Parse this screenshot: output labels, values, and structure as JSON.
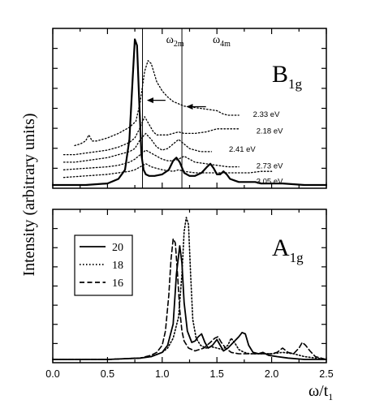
{
  "chart_data": [
    {
      "panel": "top",
      "type": "line",
      "label_main": "B",
      "label_sub": "1g",
      "xlim": [
        0.0,
        2.5
      ],
      "yticks_unlabeled": true,
      "vlines": [
        {
          "x": 0.82,
          "label_main": "",
          "label_sub": ""
        },
        {
          "x": 1.18,
          "label_main": "ω",
          "label_sub": "2m"
        }
      ],
      "vline_extra_label": {
        "x": 1.55,
        "label_main": "ω",
        "label_sub": "4m"
      },
      "arrows": [
        {
          "from_x": 1.03,
          "to_x": 0.86,
          "y_frac": 0.55
        },
        {
          "from_x": 1.4,
          "to_x": 1.22,
          "y_frac": 0.51
        }
      ],
      "series": [
        {
          "name": "Bold",
          "style": "solid",
          "width": 2.2,
          "x": [
            0.0,
            0.3,
            0.5,
            0.6,
            0.66,
            0.7,
            0.73,
            0.75,
            0.77,
            0.79,
            0.81,
            0.83,
            0.85,
            0.88,
            0.93,
            1.0,
            1.06,
            1.1,
            1.13,
            1.16,
            1.2,
            1.25,
            1.3,
            1.36,
            1.41,
            1.44,
            1.47,
            1.5,
            1.53,
            1.56,
            1.59,
            1.62,
            1.66,
            1.7,
            1.75,
            1.8,
            1.85,
            1.9,
            2.0,
            2.1,
            2.3,
            2.5
          ],
          "y": [
            0.0,
            0.0,
            0.01,
            0.04,
            0.1,
            0.3,
            0.7,
            0.96,
            0.92,
            0.55,
            0.2,
            0.1,
            0.07,
            0.06,
            0.06,
            0.07,
            0.1,
            0.16,
            0.18,
            0.15,
            0.08,
            0.06,
            0.06,
            0.08,
            0.12,
            0.14,
            0.11,
            0.07,
            0.07,
            0.09,
            0.07,
            0.04,
            0.03,
            0.02,
            0.02,
            0.02,
            0.02,
            0.01,
            0.01,
            0.01,
            0.0,
            0.0
          ]
        },
        {
          "name": "2.33 eV",
          "style": "dotted",
          "x": [
            0.2,
            0.25,
            0.3,
            0.33,
            0.36,
            0.4,
            0.5,
            0.6,
            0.7,
            0.76,
            0.8,
            0.84,
            0.87,
            0.9,
            0.95,
            1.0,
            1.05,
            1.1,
            1.2,
            1.3,
            1.4,
            1.5,
            1.55,
            1.6,
            1.65,
            1.7
          ],
          "y": [
            0.26,
            0.27,
            0.29,
            0.33,
            0.29,
            0.29,
            0.31,
            0.34,
            0.38,
            0.42,
            0.55,
            0.75,
            0.82,
            0.8,
            0.68,
            0.62,
            0.58,
            0.55,
            0.52,
            0.51,
            0.5,
            0.49,
            0.47,
            0.46,
            0.46,
            0.46
          ]
        },
        {
          "name": "2.18 eV",
          "style": "dotted",
          "x": [
            0.1,
            0.2,
            0.3,
            0.4,
            0.5,
            0.6,
            0.7,
            0.75,
            0.8,
            0.84,
            0.88,
            0.92,
            0.95,
            1.0,
            1.05,
            1.1,
            1.15,
            1.2,
            1.3,
            1.4,
            1.5,
            1.6,
            1.65,
            1.7
          ],
          "y": [
            0.2,
            0.2,
            0.21,
            0.22,
            0.23,
            0.25,
            0.28,
            0.31,
            0.38,
            0.45,
            0.4,
            0.35,
            0.33,
            0.33,
            0.33,
            0.34,
            0.35,
            0.34,
            0.34,
            0.35,
            0.37,
            0.37,
            0.37,
            0.37
          ]
        },
        {
          "name": "2.41 eV",
          "style": "dotted",
          "x": [
            0.1,
            0.2,
            0.3,
            0.4,
            0.5,
            0.6,
            0.7,
            0.75,
            0.8,
            0.85,
            0.9,
            0.95,
            1.0,
            1.05,
            1.1,
            1.15,
            1.2,
            1.25,
            1.3,
            1.35,
            1.4,
            1.45
          ],
          "y": [
            0.15,
            0.15,
            0.16,
            0.17,
            0.18,
            0.2,
            0.22,
            0.24,
            0.3,
            0.34,
            0.3,
            0.25,
            0.23,
            0.24,
            0.27,
            0.3,
            0.27,
            0.24,
            0.23,
            0.22,
            0.22,
            0.22
          ]
        },
        {
          "name": "2.73 eV",
          "style": "dotted",
          "x": [
            0.1,
            0.3,
            0.5,
            0.6,
            0.7,
            0.75,
            0.8,
            0.85,
            0.9,
            0.95,
            1.0,
            1.05,
            1.1,
            1.15,
            1.2,
            1.25,
            1.3,
            1.4,
            1.5,
            1.6,
            1.7
          ],
          "y": [
            0.1,
            0.11,
            0.12,
            0.13,
            0.15,
            0.17,
            0.2,
            0.23,
            0.21,
            0.19,
            0.17,
            0.16,
            0.16,
            0.17,
            0.19,
            0.17,
            0.15,
            0.14,
            0.13,
            0.12,
            0.12
          ]
        },
        {
          "name": "3.05 eV",
          "style": "dotted",
          "x": [
            0.1,
            0.3,
            0.5,
            0.6,
            0.7,
            0.75,
            0.8,
            0.85,
            0.9,
            1.0,
            1.1,
            1.15,
            1.2,
            1.3,
            1.4,
            1.5,
            1.6,
            1.7,
            1.8,
            1.9,
            2.0
          ],
          "y": [
            0.05,
            0.06,
            0.07,
            0.08,
            0.09,
            0.1,
            0.12,
            0.14,
            0.12,
            0.1,
            0.09,
            0.1,
            0.09,
            0.08,
            0.08,
            0.08,
            0.08,
            0.08,
            0.08,
            0.09,
            0.09
          ]
        }
      ],
      "series_labels": [
        {
          "text": "2.33 eV",
          "x": 1.83,
          "y": 0.47
        },
        {
          "text": "2.18 eV",
          "x": 1.86,
          "y": 0.36
        },
        {
          "text": "2.41 eV",
          "x": 1.61,
          "y": 0.24
        },
        {
          "text": "2.73 eV",
          "x": 1.86,
          "y": 0.13
        },
        {
          "text": "3.05 eV",
          "x": 1.86,
          "y": 0.03
        }
      ]
    },
    {
      "panel": "bottom",
      "type": "line",
      "label_main": "A",
      "label_sub": "1g",
      "xlim": [
        0.0,
        2.5
      ],
      "xticks": [
        "0.0",
        "0.5",
        "1.0",
        "1.5",
        "2.0",
        "2.5"
      ],
      "xtick_values": [
        0.0,
        0.5,
        1.0,
        1.5,
        2.0,
        2.5
      ],
      "xlabel_main": "ω/t",
      "xlabel_sub": "1",
      "legend": {
        "position": "upper-left",
        "entries": [
          {
            "text": "20",
            "style": "solid"
          },
          {
            "text": "18",
            "style": "dotted"
          },
          {
            "text": "16",
            "style": "dashed"
          }
        ]
      },
      "series": [
        {
          "name": "20",
          "style": "solid",
          "width": 1.8,
          "x": [
            0.0,
            0.5,
            0.8,
            0.9,
            1.0,
            1.05,
            1.1,
            1.13,
            1.16,
            1.18,
            1.2,
            1.23,
            1.27,
            1.3,
            1.33,
            1.36,
            1.39,
            1.42,
            1.46,
            1.5,
            1.53,
            1.56,
            1.6,
            1.65,
            1.7,
            1.73,
            1.76,
            1.79,
            1.83,
            1.88,
            1.92,
            1.97,
            2.05,
            2.15,
            2.3,
            2.5
          ],
          "y": [
            0.0,
            0.0,
            0.01,
            0.02,
            0.05,
            0.1,
            0.25,
            0.6,
            0.8,
            0.68,
            0.4,
            0.2,
            0.12,
            0.13,
            0.16,
            0.18,
            0.12,
            0.08,
            0.1,
            0.14,
            0.1,
            0.06,
            0.08,
            0.12,
            0.16,
            0.19,
            0.18,
            0.1,
            0.05,
            0.04,
            0.05,
            0.03,
            0.02,
            0.01,
            0.0,
            0.0
          ]
        },
        {
          "name": "18",
          "style": "dotted",
          "width": 1.6,
          "x": [
            0.0,
            0.5,
            0.8,
            0.9,
            1.0,
            1.05,
            1.1,
            1.15,
            1.18,
            1.2,
            1.22,
            1.24,
            1.26,
            1.28,
            1.31,
            1.35,
            1.4,
            1.45,
            1.5,
            1.55,
            1.6,
            1.63,
            1.66,
            1.7,
            1.75,
            1.8,
            1.9,
            2.0,
            2.1,
            2.2,
            2.3,
            2.5
          ],
          "y": [
            0.0,
            0.0,
            0.01,
            0.02,
            0.05,
            0.08,
            0.15,
            0.3,
            0.6,
            0.9,
            1.0,
            0.95,
            0.6,
            0.28,
            0.15,
            0.1,
            0.08,
            0.09,
            0.08,
            0.07,
            0.1,
            0.15,
            0.12,
            0.07,
            0.05,
            0.04,
            0.04,
            0.04,
            0.05,
            0.04,
            0.02,
            0.0
          ]
        },
        {
          "name": "16",
          "style": "dashed",
          "width": 1.6,
          "x": [
            0.0,
            0.5,
            0.8,
            0.9,
            0.95,
            1.0,
            1.03,
            1.06,
            1.08,
            1.1,
            1.12,
            1.14,
            1.16,
            1.18,
            1.2,
            1.24,
            1.3,
            1.38,
            1.44,
            1.48,
            1.51,
            1.54,
            1.58,
            1.63,
            1.7,
            1.8,
            1.9,
            2.0,
            2.05,
            2.1,
            2.15,
            2.2,
            2.25,
            2.28,
            2.31,
            2.35,
            2.4,
            2.5
          ],
          "y": [
            0.0,
            0.0,
            0.01,
            0.03,
            0.05,
            0.1,
            0.2,
            0.45,
            0.7,
            0.85,
            0.82,
            0.6,
            0.35,
            0.2,
            0.13,
            0.08,
            0.06,
            0.08,
            0.12,
            0.15,
            0.16,
            0.12,
            0.08,
            0.05,
            0.04,
            0.04,
            0.04,
            0.04,
            0.05,
            0.08,
            0.05,
            0.04,
            0.08,
            0.12,
            0.1,
            0.06,
            0.02,
            0.0
          ]
        }
      ]
    }
  ],
  "ylabel": "Intensity (arbitrary units)"
}
